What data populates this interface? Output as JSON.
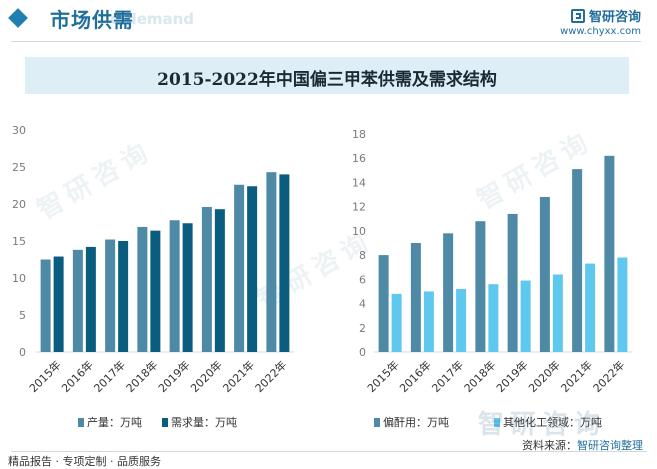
{
  "header": {
    "section_title": "市场供需",
    "section_subtitle": "d demand",
    "brand_name": "智研咨询",
    "brand_url": "www.chyxx.com"
  },
  "title": "2015-2022年中国偏三甲苯供需及需求结构",
  "watermark_text": "智研咨询",
  "colors": {
    "production": "#4e8aa6",
    "demand": "#0b5d80",
    "pseudocumene": "#4e8aa6",
    "other": "#5fc8ef"
  },
  "chart_data": [
    {
      "type": "bar",
      "title": "",
      "categories": [
        "2015年",
        "2016年",
        "2017年",
        "2018年",
        "2019年",
        "2020年",
        "2021年",
        "2022年"
      ],
      "ylim": [
        0,
        30
      ],
      "yticks": [
        0,
        5,
        10,
        15,
        20,
        25,
        30
      ],
      "series": [
        {
          "name": "产量：万吨",
          "color_key": "production",
          "values": [
            12.5,
            13.8,
            15.2,
            16.9,
            17.8,
            19.6,
            22.6,
            24.3
          ]
        },
        {
          "name": "需求量：万吨",
          "color_key": "demand",
          "values": [
            12.9,
            14.2,
            15.0,
            16.4,
            17.4,
            19.3,
            22.4,
            24.0
          ]
        }
      ],
      "legend_position": "bottom-left"
    },
    {
      "type": "bar",
      "title": "",
      "categories": [
        "2015年",
        "2016年",
        "2017年",
        "2018年",
        "2019年",
        "2020年",
        "2021年",
        "2022年"
      ],
      "ylim": [
        0,
        18
      ],
      "yticks": [
        0,
        2,
        4,
        6,
        8,
        10,
        12,
        14,
        16,
        18
      ],
      "series": [
        {
          "name": "偏酐用：万吨",
          "color_key": "pseudocumene",
          "values": [
            8.0,
            9.0,
            9.8,
            10.8,
            11.4,
            12.8,
            15.1,
            16.2
          ]
        },
        {
          "name": "其他化工领域：万吨",
          "color_key": "other",
          "values": [
            4.8,
            5.0,
            5.2,
            5.6,
            5.9,
            6.4,
            7.3,
            7.8
          ]
        }
      ],
      "legend_position": "bottom-right"
    }
  ],
  "footer": {
    "left_text": "精品报告 · 专项定制 · 品质服务",
    "source_label": "资料来源：",
    "source_value": "智研咨询整理"
  }
}
